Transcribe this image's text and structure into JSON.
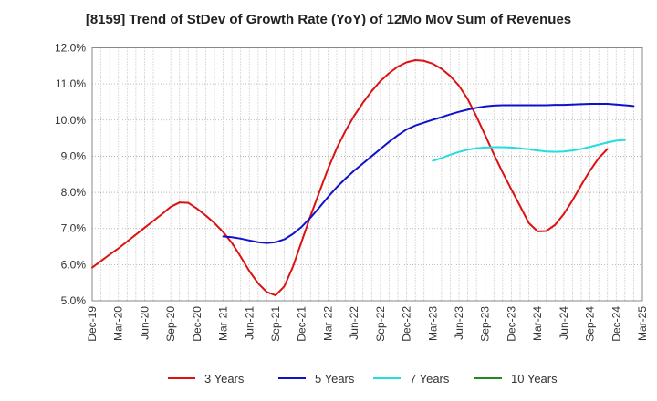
{
  "chart_data": {
    "type": "line",
    "title": "[8159]  Trend of StDev of Growth Rate (YoY) of 12Mo Mov Sum of Revenues",
    "xlabel": "",
    "ylabel": "",
    "ylim": [
      5.0,
      12.0
    ],
    "y_ticks": [
      5.0,
      6.0,
      7.0,
      8.0,
      9.0,
      10.0,
      11.0,
      12.0
    ],
    "y_tick_labels": [
      "5.0%",
      "6.0%",
      "7.0%",
      "8.0%",
      "9.0%",
      "10.0%",
      "11.0%",
      "12.0%"
    ],
    "x_tick_labels": [
      "Dec-19",
      "Mar-20",
      "Jun-20",
      "Sep-20",
      "Dec-20",
      "Mar-21",
      "Jun-21",
      "Sep-21",
      "Dec-21",
      "Mar-22",
      "Jun-22",
      "Sep-22",
      "Dec-22",
      "Mar-23",
      "Jun-23",
      "Sep-23",
      "Dec-23",
      "Mar-24",
      "Jun-24",
      "Sep-24",
      "Dec-24",
      "Mar-25"
    ],
    "grid": true,
    "legend_position": "bottom",
    "series": [
      {
        "name": "3 Years",
        "color": "#dd1111",
        "start_month": 0,
        "values": [
          5.92,
          6.1,
          6.28,
          6.45,
          6.64,
          6.83,
          7.02,
          7.21,
          7.4,
          7.6,
          7.72,
          7.71,
          7.55,
          7.36,
          7.15,
          6.9,
          6.6,
          6.22,
          5.82,
          5.48,
          5.24,
          5.15,
          5.4,
          5.95,
          6.65,
          7.35,
          8.0,
          8.65,
          9.22,
          9.7,
          10.12,
          10.48,
          10.8,
          11.08,
          11.3,
          11.48,
          11.6,
          11.66,
          11.64,
          11.56,
          11.42,
          11.22,
          10.95,
          10.58,
          10.1,
          9.58,
          9.05,
          8.55,
          8.08,
          7.62,
          7.15,
          6.92,
          6.93,
          7.1,
          7.4,
          7.78,
          8.2,
          8.6,
          8.95,
          9.2
        ]
      },
      {
        "name": "5 Years",
        "color": "#1111cc",
        "start_month": 15,
        "values": [
          6.78,
          6.76,
          6.72,
          6.67,
          6.62,
          6.6,
          6.62,
          6.7,
          6.85,
          7.05,
          7.3,
          7.58,
          7.87,
          8.14,
          8.38,
          8.6,
          8.8,
          9.0,
          9.2,
          9.4,
          9.58,
          9.74,
          9.85,
          9.93,
          10.01,
          10.08,
          10.16,
          10.23,
          10.29,
          10.34,
          10.38,
          10.4,
          10.41,
          10.41,
          10.41,
          10.41,
          10.41,
          10.41,
          10.42,
          10.42,
          10.43,
          10.44,
          10.45,
          10.45,
          10.45,
          10.43,
          10.41,
          10.39
        ]
      },
      {
        "name": "7 Years",
        "color": "#22dddd",
        "start_month": 39,
        "values": [
          8.87,
          8.95,
          9.04,
          9.12,
          9.18,
          9.22,
          9.24,
          9.25,
          9.25,
          9.24,
          9.22,
          9.19,
          9.16,
          9.13,
          9.12,
          9.13,
          9.16,
          9.2,
          9.26,
          9.32,
          9.38,
          9.43,
          9.45
        ]
      },
      {
        "name": "10 Years",
        "color": "#228822",
        "start_month": 0,
        "values": []
      }
    ]
  }
}
